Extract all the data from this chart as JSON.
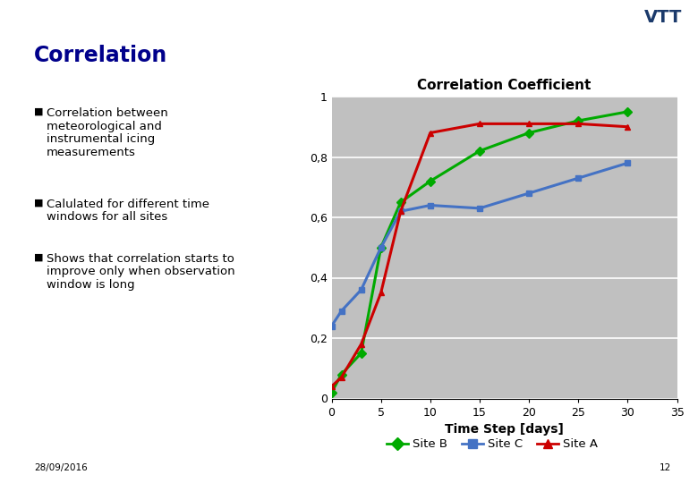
{
  "title": "Correlation",
  "title_color": "#00008B",
  "chart_title": "Correlation Coefficient",
  "xlabel": "Time Step [days]",
  "bullet_points": [
    "Correlation between meteorological and instrumental icing measurements",
    "Calulated for different time windows for all sites",
    "Shows that correlation starts to improve only when observation window is long"
  ],
  "footer": "28/09/2016",
  "page_number": "12",
  "xlim": [
    0,
    35
  ],
  "ylim": [
    0,
    1.0
  ],
  "xticks": [
    0,
    5,
    10,
    15,
    20,
    25,
    30,
    35
  ],
  "yticks": [
    0,
    0.2,
    0.4,
    0.6,
    0.8,
    1.0
  ],
  "ytick_labels": [
    "0",
    "0,2",
    "0,4",
    "0,6",
    "0,8",
    "1"
  ],
  "site_B": {
    "x": [
      0,
      1,
      3,
      5,
      7,
      10,
      15,
      20,
      25,
      30
    ],
    "y": [
      0.02,
      0.08,
      0.15,
      0.5,
      0.65,
      0.72,
      0.82,
      0.88,
      0.92,
      0.95
    ],
    "color": "#00AA00",
    "marker": "D",
    "label": "Site B"
  },
  "site_C": {
    "x": [
      0,
      1,
      3,
      5,
      7,
      10,
      15,
      20,
      25,
      30
    ],
    "y": [
      0.24,
      0.29,
      0.36,
      0.5,
      0.62,
      0.64,
      0.63,
      0.68,
      0.73,
      0.78
    ],
    "color": "#4472C4",
    "marker": "s",
    "label": "Site C"
  },
  "site_A": {
    "x": [
      0,
      1,
      3,
      5,
      7,
      10,
      15,
      20,
      25,
      30
    ],
    "y": [
      0.04,
      0.07,
      0.18,
      0.35,
      0.62,
      0.88,
      0.91,
      0.91,
      0.91,
      0.9
    ],
    "color": "#CC0000",
    "marker": "^",
    "label": "Site A"
  },
  "plot_bg_color": "#C0C0C0",
  "bg_color": "#FFFFFF",
  "grid_color": "#FFFFFF"
}
